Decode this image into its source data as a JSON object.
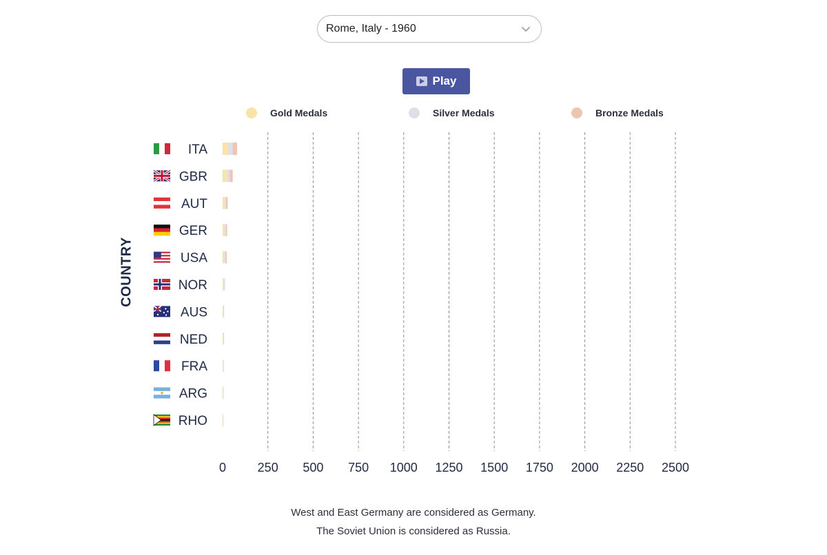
{
  "selector": {
    "value": "Rome, Italy - 1960"
  },
  "controls": {
    "play_label": "Play"
  },
  "legend": [
    {
      "label": "Gold Medals",
      "color": "#f9e3a6"
    },
    {
      "label": "Silver Medals",
      "color": "#dde1e7"
    },
    {
      "label": "Bronze Medals",
      "color": "#eec4b4"
    }
  ],
  "notes": [
    "West and East Germany are considered as Germany.",
    "The Soviet Union is considered as Russia."
  ],
  "chart_data": {
    "type": "bar",
    "orientation": "horizontal",
    "stacked": true,
    "ylabel": "COUNTRY",
    "xlabel": "",
    "xlim": [
      0,
      2500
    ],
    "xticks": [
      0,
      250,
      500,
      750,
      1000,
      1250,
      1500,
      1750,
      2000,
      2250,
      2500
    ],
    "grid": "x-dashed",
    "legend_position": "top",
    "categories": [
      "ITA",
      "GBR",
      "AUT",
      "GER",
      "USA",
      "NOR",
      "AUS",
      "NED",
      "FRA",
      "ARG",
      "RHO"
    ],
    "series": [
      {
        "name": "Gold Medals",
        "color": "#f9e3a6",
        "values": [
          30,
          22,
          10,
          10,
          9,
          8,
          3,
          3,
          2,
          2,
          1
        ]
      },
      {
        "name": "Silver Medals",
        "color": "#dde1e7",
        "values": [
          25,
          18,
          9,
          8,
          7,
          3,
          3,
          3,
          2,
          1,
          1
        ]
      },
      {
        "name": "Bronze Medals",
        "color": "#eec4b4",
        "values": [
          25,
          16,
          9,
          7,
          7,
          2,
          2,
          2,
          1,
          1,
          1
        ]
      }
    ],
    "flags": [
      "flag-italy",
      "flag-uk",
      "flag-austria",
      "flag-germany",
      "flag-usa",
      "flag-norway",
      "flag-australia",
      "flag-netherlands",
      "flag-france",
      "flag-argentina",
      "flag-rhodesia"
    ]
  }
}
